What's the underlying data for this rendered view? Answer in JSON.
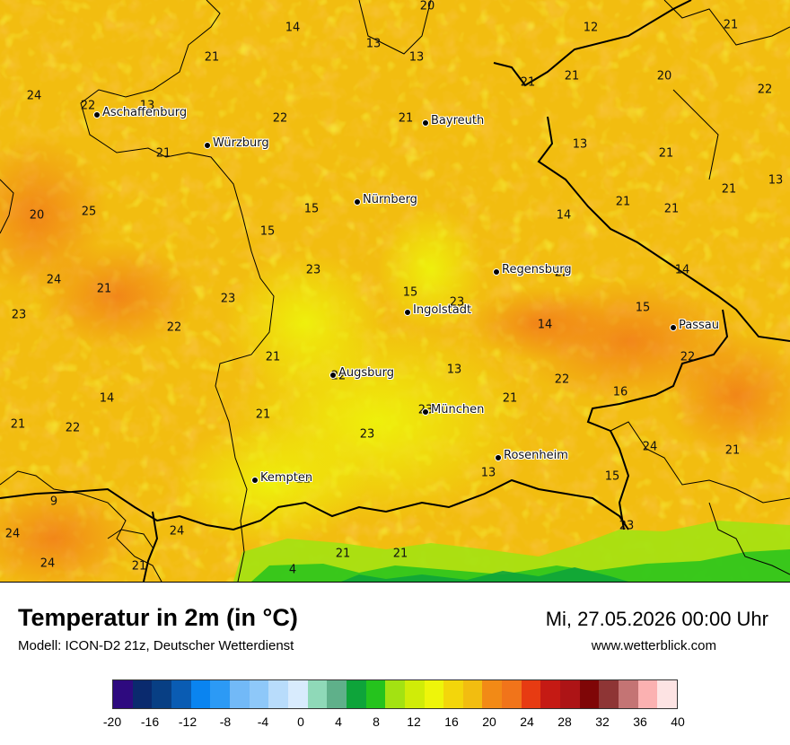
{
  "header": {
    "title": "Temperatur in 2m (in °C)",
    "subtitle": "Modell: ICON-D2 21z, Deutscher Wetterdienst",
    "datetime": "Mi, 27.05.2026 00:00 Uhr",
    "website": "www.wetterblick.com"
  },
  "cities": [
    {
      "name": "Aschaffenburg"
    },
    {
      "name": "Würzburg"
    },
    {
      "name": "Bayreuth"
    },
    {
      "name": "Nürnberg"
    },
    {
      "name": "Regensburg"
    },
    {
      "name": "Ingolstadt"
    },
    {
      "name": "Passau"
    },
    {
      "name": "Augsburg"
    },
    {
      "name": "München"
    },
    {
      "name": "Rosenheim"
    },
    {
      "name": "Kempten"
    }
  ],
  "temperature_labels": [
    "20",
    "14",
    "13",
    "13",
    "12",
    "21",
    "21",
    "22",
    "24",
    "22",
    "13",
    "22",
    "21",
    "21",
    "20",
    "21",
    "21",
    "21",
    "13",
    "21",
    "13",
    "21",
    "21",
    "20",
    "25",
    "15",
    "14",
    "15",
    "14",
    "24",
    "21",
    "23",
    "22",
    "15",
    "23",
    "23",
    "22",
    "15",
    "23",
    "14",
    "21",
    "22",
    "13",
    "22",
    "22",
    "16",
    "14",
    "21",
    "21",
    "23",
    "23",
    "21",
    "22",
    "24",
    "21",
    "13",
    "22",
    "15",
    "9",
    "23",
    "24",
    "24",
    "24",
    "21",
    "21",
    "21",
    "4"
  ],
  "legend": {
    "ticks": [
      "-20",
      "-16",
      "-12",
      "-8",
      "-4",
      "0",
      "4",
      "8",
      "12",
      "16",
      "20",
      "24",
      "28",
      "32",
      "36",
      "40"
    ],
    "colors": [
      "#2e0a7f",
      "#0a2a6e",
      "#083f84",
      "#0a5cb3",
      "#0a84f0",
      "#2c9af5",
      "#72b9f7",
      "#8ec8f9",
      "#b8dcfb",
      "#d8ebfd",
      "#8fd9b8",
      "#5fb08a",
      "#0ea43a",
      "#25c31d",
      "#a3e212",
      "#d0ec08",
      "#eef50a",
      "#f3d60b",
      "#f2bd10",
      "#f28a16",
      "#f1741a",
      "#e73b12",
      "#c51a14",
      "#ad1416",
      "#7f0607",
      "#8e3535",
      "#c47474",
      "#fbb1b1",
      "#fde3e3"
    ]
  }
}
